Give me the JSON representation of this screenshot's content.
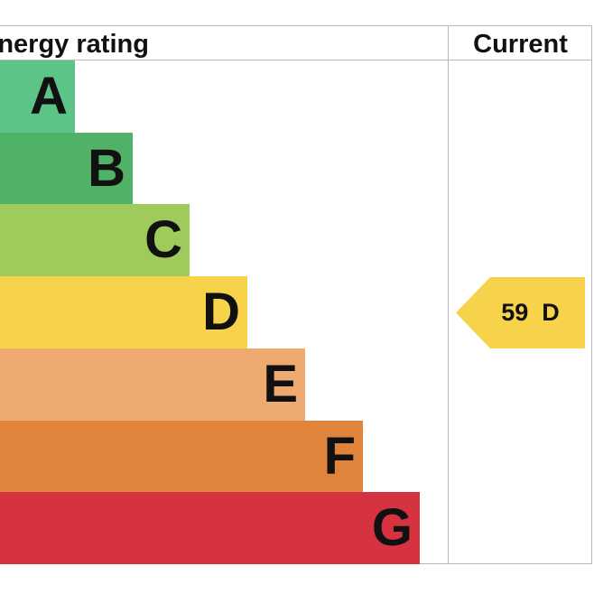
{
  "header": {
    "title": "Energy rating",
    "current_label": "Current"
  },
  "chart_data": {
    "type": "bar",
    "categories": [
      "A",
      "B",
      "C",
      "D",
      "E",
      "F",
      "G"
    ],
    "colors": [
      "#5dc487",
      "#4fb267",
      "#9ecb5b",
      "#f6d34a",
      "#efaa70",
      "#e1843b",
      "#d5333f"
    ],
    "current": {
      "score": 59,
      "band": "D",
      "label": "59  D",
      "color": "#f6d34a"
    }
  }
}
